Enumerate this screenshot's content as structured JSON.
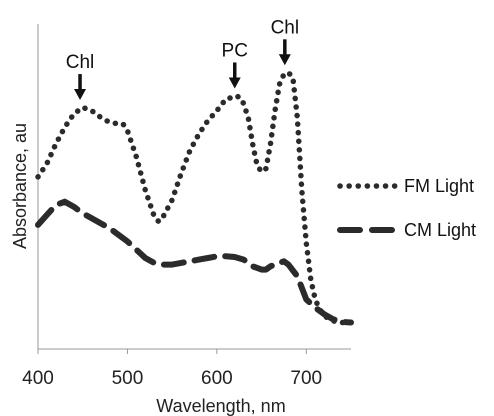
{
  "chart_data": {
    "type": "line",
    "xlabel": "Wavelength, nm",
    "ylabel": "Absorbance, au",
    "xlim": [
      400,
      750
    ],
    "ylim": [
      0,
      1
    ],
    "x_ticks": [
      400,
      500,
      600,
      700
    ],
    "y_tick_labels": "none",
    "grid": false,
    "legend_position": "right",
    "series": [
      {
        "name": "FM Light",
        "style": "dotted",
        "color": "#2b2b2b",
        "points": [
          [
            400,
            0.52
          ],
          [
            410,
            0.56
          ],
          [
            420,
            0.62
          ],
          [
            430,
            0.67
          ],
          [
            440,
            0.71
          ],
          [
            450,
            0.73
          ],
          [
            460,
            0.72
          ],
          [
            470,
            0.7
          ],
          [
            480,
            0.685
          ],
          [
            490,
            0.68
          ],
          [
            495,
            0.68
          ],
          [
            500,
            0.66
          ],
          [
            510,
            0.58
          ],
          [
            520,
            0.48
          ],
          [
            530,
            0.4
          ],
          [
            535,
            0.385
          ],
          [
            540,
            0.4
          ],
          [
            550,
            0.45
          ],
          [
            560,
            0.53
          ],
          [
            570,
            0.6
          ],
          [
            580,
            0.65
          ],
          [
            590,
            0.69
          ],
          [
            600,
            0.72
          ],
          [
            610,
            0.755
          ],
          [
            617,
            0.76
          ],
          [
            622,
            0.765
          ],
          [
            628,
            0.755
          ],
          [
            635,
            0.7
          ],
          [
            640,
            0.62
          ],
          [
            645,
            0.555
          ],
          [
            650,
            0.535
          ],
          [
            655,
            0.545
          ],
          [
            660,
            0.62
          ],
          [
            665,
            0.72
          ],
          [
            670,
            0.8
          ],
          [
            675,
            0.83
          ],
          [
            680,
            0.835
          ],
          [
            685,
            0.82
          ],
          [
            690,
            0.7
          ],
          [
            695,
            0.48
          ],
          [
            700,
            0.32
          ],
          [
            705,
            0.21
          ],
          [
            710,
            0.15
          ],
          [
            715,
            0.12
          ],
          [
            720,
            0.1
          ],
          [
            730,
            0.085
          ],
          [
            740,
            0.08
          ],
          [
            750,
            0.078
          ]
        ]
      },
      {
        "name": "CM Light",
        "style": "dashed",
        "color": "#2b2b2b",
        "points": [
          [
            400,
            0.375
          ],
          [
            410,
            0.405
          ],
          [
            420,
            0.435
          ],
          [
            430,
            0.445
          ],
          [
            440,
            0.43
          ],
          [
            450,
            0.41
          ],
          [
            460,
            0.395
          ],
          [
            470,
            0.38
          ],
          [
            480,
            0.365
          ],
          [
            490,
            0.345
          ],
          [
            500,
            0.325
          ],
          [
            510,
            0.3
          ],
          [
            520,
            0.275
          ],
          [
            530,
            0.26
          ],
          [
            540,
            0.255
          ],
          [
            550,
            0.255
          ],
          [
            560,
            0.26
          ],
          [
            570,
            0.265
          ],
          [
            580,
            0.27
          ],
          [
            590,
            0.275
          ],
          [
            600,
            0.28
          ],
          [
            610,
            0.28
          ],
          [
            620,
            0.278
          ],
          [
            630,
            0.27
          ],
          [
            640,
            0.25
          ],
          [
            650,
            0.24
          ],
          [
            655,
            0.24
          ],
          [
            660,
            0.25
          ],
          [
            670,
            0.26
          ],
          [
            675,
            0.265
          ],
          [
            680,
            0.255
          ],
          [
            690,
            0.22
          ],
          [
            700,
            0.15
          ],
          [
            710,
            0.125
          ],
          [
            720,
            0.105
          ],
          [
            730,
            0.09
          ],
          [
            740,
            0.082
          ],
          [
            750,
            0.08
          ]
        ]
      }
    ],
    "annotations": [
      {
        "text": "Chl",
        "x": 447,
        "y": 0.74
      },
      {
        "text": "PC",
        "x": 620,
        "y": 0.775
      },
      {
        "text": "Chl",
        "x": 676,
        "y": 0.845
      }
    ]
  }
}
